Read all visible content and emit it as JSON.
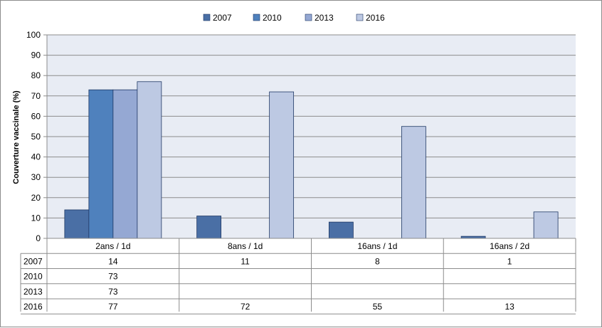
{
  "chart_data": {
    "type": "bar",
    "categories": [
      "2ans / 1d",
      "8ans / 1d",
      "16ans / 1d",
      "16ans / 2d"
    ],
    "series": [
      {
        "name": "2007",
        "values": [
          14,
          11,
          8,
          1
        ],
        "labels": [
          "14",
          "11",
          "8",
          "1"
        ],
        "color": "#4a6fa5"
      },
      {
        "name": "2010",
        "values": [
          73,
          null,
          null,
          null
        ],
        "labels": [
          "73",
          "",
          "",
          ""
        ],
        "color": "#4f81bd"
      },
      {
        "name": "2013",
        "values": [
          73,
          null,
          null,
          null
        ],
        "labels": [
          "73",
          "",
          "",
          ""
        ],
        "color": "#95a8d3"
      },
      {
        "name": "2016",
        "values": [
          77,
          72,
          55,
          13
        ],
        "labels": [
          "77",
          "72",
          "55",
          "13"
        ],
        "color": "#bdc9e3"
      }
    ],
    "ylabel": "Couverture vaccinale  (%)",
    "ylim": [
      0,
      100
    ],
    "yticks": [
      0,
      10,
      20,
      30,
      40,
      50,
      60,
      70,
      80,
      90,
      100
    ],
    "grid": true,
    "legend_position": "top",
    "plot_background": "#e8ecf4",
    "data_table": true
  }
}
